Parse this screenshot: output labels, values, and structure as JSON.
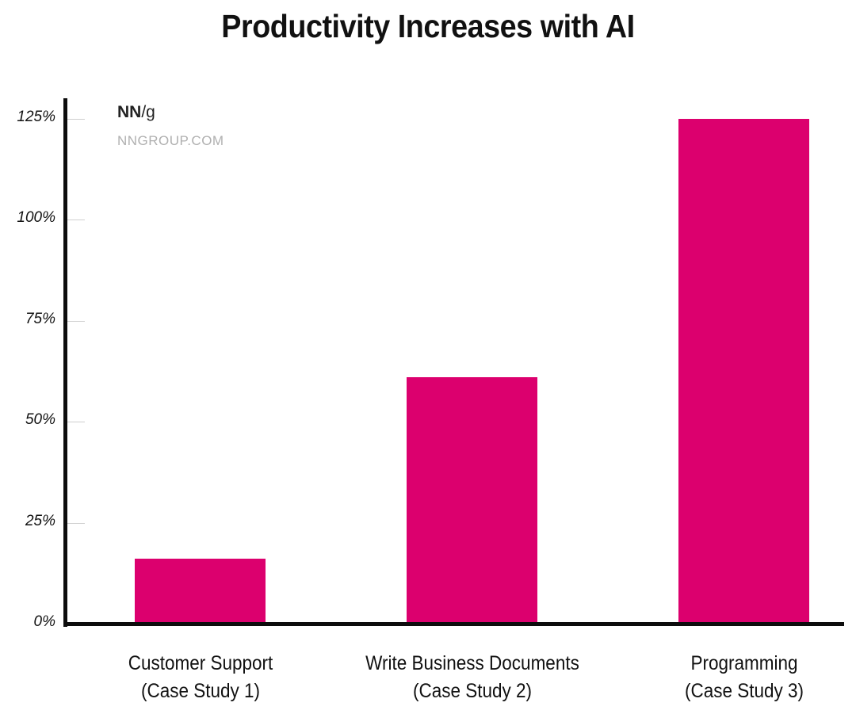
{
  "chart_data": {
    "type": "bar",
    "title": "Productivity Increases with AI",
    "categories": [
      "Customer Support (Case Study 1)",
      "Write Business Documents (Case Study 2)",
      "Programming (Case Study 3)"
    ],
    "category_lines": [
      [
        "Customer Support",
        "(Case Study 1)"
      ],
      [
        "Write Business Documents",
        "(Case Study 2)"
      ],
      [
        "Programming",
        "(Case Study 3)"
      ]
    ],
    "values": [
      16,
      61,
      125
    ],
    "xlabel": "",
    "ylabel": "",
    "ylim": [
      0,
      125
    ],
    "yticks": [
      "0%",
      "25%",
      "50%",
      "75%",
      "100%",
      "125%"
    ],
    "grid": false,
    "legend": null,
    "bar_color": "#dc006e"
  },
  "branding": {
    "logo_nn": "NN",
    "logo_g": "/g",
    "site": "NNGROUP.COM"
  }
}
